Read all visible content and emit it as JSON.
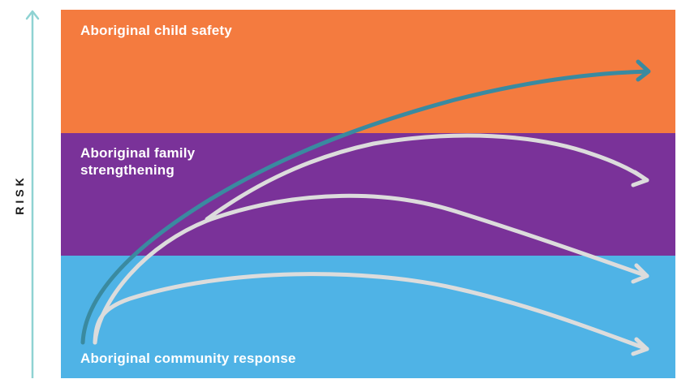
{
  "axis": {
    "label": "RISK",
    "color": "#8fd3d3"
  },
  "bands": [
    {
      "label_lines": [
        "Aboriginal child safety"
      ],
      "color": "#f47b3f"
    },
    {
      "label_lines": [
        "Aboriginal family",
        "strengthening"
      ],
      "color": "#7a3299"
    },
    {
      "label_lines": [
        "Aboriginal community response"
      ],
      "color": "#4fb3e6"
    }
  ],
  "pathways": {
    "primary_color": "#3a8aa0",
    "secondary_color": "#dcdcdc"
  }
}
